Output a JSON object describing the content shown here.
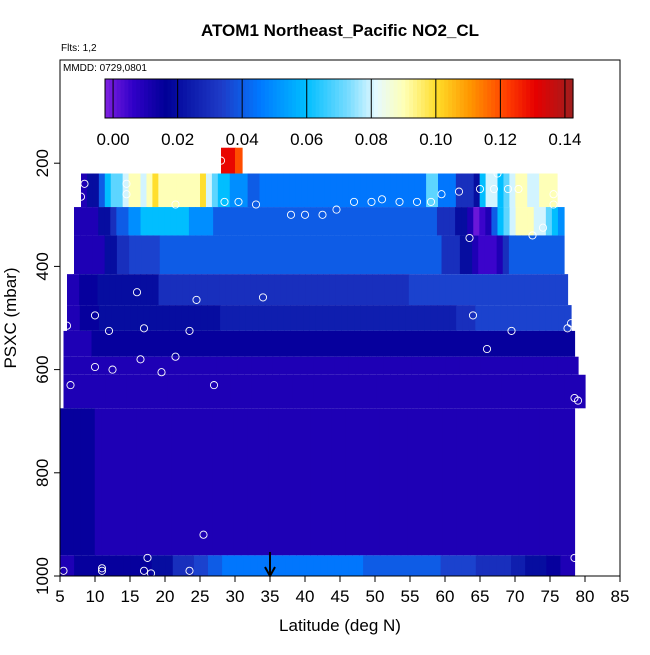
{
  "chart_data": {
    "type": "heatmap",
    "title": "ATOM1 Northeast_Pacific NO2_CL",
    "annotations": [
      "Flts: 1,2",
      "MMDD: 0729,0801"
    ],
    "xlabel": "Latitude (deg N)",
    "ylabel": "PSXC (mbar)",
    "xlim": [
      5,
      85
    ],
    "ylim": [
      1000,
      0
    ],
    "x_ticks": [
      5,
      10,
      15,
      20,
      25,
      30,
      35,
      40,
      45,
      50,
      55,
      60,
      65,
      70,
      75,
      80,
      85
    ],
    "y_ticks": [
      200,
      400,
      600,
      800,
      1000
    ],
    "colorbar": {
      "min": -0.0025,
      "max": 0.1425,
      "ticks": [
        0.0,
        0.02,
        0.04,
        0.06,
        0.08,
        0.1,
        0.12,
        0.14
      ],
      "tick_labels": [
        "0.00",
        "0.02",
        "0.04",
        "0.06",
        "0.08",
        "0.10",
        "0.12",
        "0.14"
      ]
    },
    "marker_latitude": 35,
    "bands": [
      {
        "p_top": 170,
        "p_bot": 220,
        "x_start": 28,
        "x_end": 31,
        "values": [
          0.13,
          0.13,
          0.12
        ]
      },
      {
        "p_top": 220,
        "p_bot": 285,
        "x_start": 8,
        "x_end": 76,
        "values": [
          0.01,
          0.02,
          0.02,
          0.04,
          0.06,
          0.07,
          0.07,
          0.08,
          0.09,
          0.09,
          0.08,
          0.09,
          0.1,
          0.09,
          0.09,
          0.09,
          0.09,
          0.09,
          0.09,
          0.09,
          0.1,
          0.08,
          0.07,
          0.06,
          0.06,
          0.05,
          0.05,
          0.05,
          0.04,
          0.04,
          0.045,
          0.045,
          0.045,
          0.045,
          0.045,
          0.045,
          0.045,
          0.045,
          0.045,
          0.045,
          0.045,
          0.045,
          0.045,
          0.045,
          0.045,
          0.045,
          0.045,
          0.045,
          0.045,
          0.045,
          0.045,
          0.045,
          0.045,
          0.045,
          0.045,
          0.045,
          0.045,
          0.045,
          0.07,
          0.07,
          0.045,
          0.045,
          0.045,
          0.03,
          0.03,
          0.03,
          0.02,
          0.06,
          0.08,
          0.08,
          0.06,
          0.07,
          0.08,
          0.09,
          0.09,
          0.08,
          0.08,
          0.09,
          0.09,
          0.09
        ]
      },
      {
        "p_top": 285,
        "p_bot": 340,
        "x_start": 7,
        "x_end": 77,
        "values": [
          0.01,
          0.01,
          0.01,
          0.01,
          0.02,
          0.02,
          0.03,
          0.04,
          0.04,
          0.05,
          0.05,
          0.06,
          0.06,
          0.06,
          0.06,
          0.06,
          0.06,
          0.06,
          0.06,
          0.05,
          0.05,
          0.05,
          0.05,
          0.04,
          0.04,
          0.04,
          0.04,
          0.04,
          0.04,
          0.04,
          0.04,
          0.04,
          0.04,
          0.04,
          0.04,
          0.04,
          0.04,
          0.04,
          0.04,
          0.04,
          0.04,
          0.04,
          0.04,
          0.04,
          0.04,
          0.04,
          0.04,
          0.04,
          0.04,
          0.04,
          0.04,
          0.04,
          0.04,
          0.04,
          0.04,
          0.04,
          0.04,
          0.04,
          0.04,
          0.04,
          0.03,
          0.03,
          0.03,
          0.02,
          0.02,
          0.01,
          0.0,
          0.005,
          0.01,
          0.04,
          0.06,
          0.07,
          0.08,
          0.09,
          0.09,
          0.09,
          0.08,
          0.08,
          0.07,
          0.06,
          0.05
        ]
      },
      {
        "p_top": 340,
        "p_bot": 415,
        "x_start": 7,
        "x_end": 77,
        "values": [
          0.01,
          0.01,
          0.01,
          0.01,
          0.01,
          0.02,
          0.02,
          0.03,
          0.03,
          0.035,
          0.035,
          0.035,
          0.035,
          0.035,
          0.04,
          0.04,
          0.04,
          0.04,
          0.04,
          0.04,
          0.04,
          0.04,
          0.04,
          0.04,
          0.04,
          0.04,
          0.04,
          0.04,
          0.04,
          0.04,
          0.04,
          0.04,
          0.04,
          0.04,
          0.04,
          0.04,
          0.04,
          0.04,
          0.04,
          0.04,
          0.04,
          0.04,
          0.04,
          0.04,
          0.04,
          0.04,
          0.04,
          0.04,
          0.04,
          0.04,
          0.04,
          0.04,
          0.04,
          0.04,
          0.04,
          0.04,
          0.04,
          0.04,
          0.04,
          0.04,
          0.03,
          0.03,
          0.03,
          0.02,
          0.02,
          0.01,
          0.005,
          0.005,
          0.005,
          0.01,
          0.03,
          0.04,
          0.04,
          0.04,
          0.04,
          0.04,
          0.04,
          0.04,
          0.04,
          0.04
        ]
      },
      {
        "p_top": 415,
        "p_bot": 475,
        "x_start": 6,
        "x_end": 77.5,
        "values": [
          0.01,
          0.01,
          0.015,
          0.015,
          0.015,
          0.02,
          0.02,
          0.02,
          0.02,
          0.02,
          0.02,
          0.02,
          0.02,
          0.02,
          0.02,
          0.03,
          0.03,
          0.03,
          0.03,
          0.03,
          0.03,
          0.03,
          0.03,
          0.03,
          0.03,
          0.03,
          0.03,
          0.03,
          0.03,
          0.03,
          0.03,
          0.03,
          0.03,
          0.03,
          0.03,
          0.03,
          0.03,
          0.03,
          0.03,
          0.03,
          0.03,
          0.03,
          0.03,
          0.03,
          0.03,
          0.03,
          0.03,
          0.03,
          0.03,
          0.03,
          0.03,
          0.03,
          0.03,
          0.03,
          0.03,
          0.03,
          0.035,
          0.035,
          0.035,
          0.035,
          0.035,
          0.035,
          0.035,
          0.035,
          0.035,
          0.035,
          0.035,
          0.035,
          0.035,
          0.035,
          0.035,
          0.035,
          0.035,
          0.035,
          0.035,
          0.035,
          0.035,
          0.035,
          0.035,
          0.035,
          0.035,
          0.035
        ]
      },
      {
        "p_top": 475,
        "p_bot": 525,
        "x_start": 6,
        "x_end": 78,
        "values": [
          0.01,
          0.01,
          0.015,
          0.015,
          0.015,
          0.02,
          0.02,
          0.02,
          0.02,
          0.02,
          0.02,
          0.02,
          0.02,
          0.02,
          0.02,
          0.02,
          0.02,
          0.02,
          0.02,
          0.02,
          0.02,
          0.02,
          0.02,
          0.02,
          0.025,
          0.025,
          0.025,
          0.025,
          0.025,
          0.025,
          0.025,
          0.025,
          0.025,
          0.025,
          0.025,
          0.025,
          0.025,
          0.025,
          0.025,
          0.025,
          0.025,
          0.025,
          0.025,
          0.025,
          0.025,
          0.025,
          0.025,
          0.025,
          0.025,
          0.025,
          0.025,
          0.025,
          0.025,
          0.025,
          0.025,
          0.025,
          0.025,
          0.025,
          0.025,
          0.025,
          0.025,
          0.03,
          0.03,
          0.03,
          0.035,
          0.035,
          0.035,
          0.035,
          0.035,
          0.035,
          0.035,
          0.035,
          0.035,
          0.035,
          0.035,
          0.035,
          0.035,
          0.035,
          0.035
        ]
      },
      {
        "p_top": 525,
        "p_bot": 575,
        "x_start": 5.5,
        "x_end": 78.5,
        "values": [
          0.01,
          0.01,
          0.01,
          0.01,
          0.015,
          0.015,
          0.015,
          0.015,
          0.015,
          0.015,
          0.015,
          0.015,
          0.015,
          0.015,
          0.015,
          0.015,
          0.015,
          0.015,
          0.015,
          0.015,
          0.015,
          0.015,
          0.015,
          0.015,
          0.015,
          0.015,
          0.015,
          0.015,
          0.015,
          0.015,
          0.015,
          0.015,
          0.015,
          0.015,
          0.015,
          0.015,
          0.015,
          0.015,
          0.015,
          0.015,
          0.015,
          0.015,
          0.015,
          0.015,
          0.015,
          0.015,
          0.015,
          0.015,
          0.015,
          0.015,
          0.015,
          0.015,
          0.015,
          0.015,
          0.015,
          0.015,
          0.015,
          0.015,
          0.015,
          0.015,
          0.015,
          0.015,
          0.015,
          0.015,
          0.015,
          0.015,
          0.015,
          0.015,
          0.015,
          0.015,
          0.015,
          0.015,
          0.015
        ]
      },
      {
        "p_top": 575,
        "p_bot": 610,
        "x_start": 5.5,
        "x_end": 79,
        "values": [
          0.01,
          0.01,
          0.01,
          0.01,
          0.01,
          0.01,
          0.01,
          0.01,
          0.01,
          0.01,
          0.01,
          0.01,
          0.01,
          0.01,
          0.01,
          0.01,
          0.01,
          0.01,
          0.01,
          0.01,
          0.01,
          0.01,
          0.01,
          0.01,
          0.01,
          0.01,
          0.01,
          0.01,
          0.01,
          0.01,
          0.01,
          0.01,
          0.01,
          0.01,
          0.01,
          0.01,
          0.01,
          0.01,
          0.01,
          0.01,
          0.01,
          0.01,
          0.01,
          0.01,
          0.01,
          0.01,
          0.01,
          0.01,
          0.01,
          0.01,
          0.01,
          0.01,
          0.01,
          0.01,
          0.01,
          0.01,
          0.01,
          0.01,
          0.01,
          0.01,
          0.01,
          0.01,
          0.01,
          0.01,
          0.01,
          0.01,
          0.01,
          0.01,
          0.01,
          0.01,
          0.01,
          0.01,
          0.01,
          0.01
        ]
      },
      {
        "p_top": 610,
        "p_bot": 675,
        "x_start": 5.5,
        "x_end": 80,
        "values": [
          0.01,
          0.01,
          0.01,
          0.01,
          0.01,
          0.01,
          0.01,
          0.01,
          0.01,
          0.01,
          0.01,
          0.01,
          0.01,
          0.01,
          0.01,
          0.01,
          0.01,
          0.01,
          0.01,
          0.01,
          0.01,
          0.01,
          0.01,
          0.01,
          0.01,
          0.01,
          0.01,
          0.01,
          0.01,
          0.01,
          0.01,
          0.01,
          0.01,
          0.01,
          0.01,
          0.01,
          0.01,
          0.01,
          0.01,
          0.01,
          0.01,
          0.01,
          0.01,
          0.01,
          0.01,
          0.01,
          0.01,
          0.01,
          0.01,
          0.01,
          0.01,
          0.01,
          0.01,
          0.01,
          0.01,
          0.01,
          0.01,
          0.01,
          0.01,
          0.01,
          0.01,
          0.01,
          0.01,
          0.01,
          0.01,
          0.01,
          0.01,
          0.01,
          0.01,
          0.01,
          0.01,
          0.01,
          0.01,
          0.01,
          0.01
        ]
      },
      {
        "p_top": 675,
        "p_bot": 960,
        "x_start": 5,
        "x_end": 78.5,
        "values": [
          0.015,
          0.015,
          0.015,
          0.015,
          0.015,
          0.01,
          0.01,
          0.01,
          0.01,
          0.01,
          0.01,
          0.01,
          0.01,
          0.01,
          0.01,
          0.01,
          0.01,
          0.01,
          0.01,
          0.01,
          0.01,
          0.01,
          0.01,
          0.01,
          0.01,
          0.01,
          0.01,
          0.01,
          0.01,
          0.01,
          0.01,
          0.01,
          0.01,
          0.01,
          0.01,
          0.01,
          0.01,
          0.01,
          0.01,
          0.01,
          0.01,
          0.01,
          0.01,
          0.01,
          0.01,
          0.01,
          0.01,
          0.01,
          0.01,
          0.01,
          0.01,
          0.01,
          0.01,
          0.01,
          0.01,
          0.01,
          0.01,
          0.01,
          0.01,
          0.01,
          0.01,
          0.01,
          0.01,
          0.01,
          0.01,
          0.01,
          0.01,
          0.01,
          0.01,
          0.01,
          0.01,
          0.01,
          0.01,
          0.01
        ]
      },
      {
        "p_top": 960,
        "p_bot": 1000,
        "x_start": 5,
        "x_end": 78.5,
        "values": [
          0.01,
          0.01,
          0.015,
          0.015,
          0.015,
          0.015,
          0.015,
          0.015,
          0.015,
          0.015,
          0.015,
          0.015,
          0.015,
          0.02,
          0.02,
          0.02,
          0.03,
          0.03,
          0.03,
          0.035,
          0.035,
          0.04,
          0.04,
          0.045,
          0.045,
          0.045,
          0.045,
          0.045,
          0.045,
          0.045,
          0.045,
          0.045,
          0.045,
          0.045,
          0.045,
          0.045,
          0.045,
          0.045,
          0.045,
          0.045,
          0.045,
          0.045,
          0.045,
          0.04,
          0.04,
          0.04,
          0.04,
          0.04,
          0.04,
          0.04,
          0.04,
          0.04,
          0.04,
          0.04,
          0.035,
          0.035,
          0.035,
          0.035,
          0.035,
          0.03,
          0.03,
          0.03,
          0.03,
          0.03,
          0.025,
          0.025,
          0.02,
          0.02,
          0.02,
          0.015,
          0.015,
          0.01,
          0.01
        ]
      }
    ],
    "points": [
      {
        "lat": 8,
        "p": 265
      },
      {
        "lat": 8.5,
        "p": 240
      },
      {
        "lat": 14.5,
        "p": 240
      },
      {
        "lat": 14.5,
        "p": 260
      },
      {
        "lat": 21.5,
        "p": 280
      },
      {
        "lat": 28,
        "p": 195
      },
      {
        "lat": 28.5,
        "p": 275
      },
      {
        "lat": 30.5,
        "p": 275
      },
      {
        "lat": 33,
        "p": 280
      },
      {
        "lat": 38,
        "p": 300
      },
      {
        "lat": 40,
        "p": 300
      },
      {
        "lat": 42.5,
        "p": 300
      },
      {
        "lat": 44.5,
        "p": 290
      },
      {
        "lat": 47,
        "p": 275
      },
      {
        "lat": 49.5,
        "p": 275
      },
      {
        "lat": 51,
        "p": 270
      },
      {
        "lat": 53.5,
        "p": 275
      },
      {
        "lat": 56,
        "p": 275
      },
      {
        "lat": 58,
        "p": 275
      },
      {
        "lat": 59.5,
        "p": 260
      },
      {
        "lat": 62,
        "p": 255
      },
      {
        "lat": 63.5,
        "p": 345
      },
      {
        "lat": 65,
        "p": 250
      },
      {
        "lat": 67,
        "p": 250
      },
      {
        "lat": 67.5,
        "p": 220
      },
      {
        "lat": 69,
        "p": 250
      },
      {
        "lat": 70.5,
        "p": 250
      },
      {
        "lat": 72.5,
        "p": 340
      },
      {
        "lat": 74,
        "p": 325
      },
      {
        "lat": 75.5,
        "p": 260
      },
      {
        "lat": 75.5,
        "p": 280
      },
      {
        "lat": 16,
        "p": 450
      },
      {
        "lat": 24.5,
        "p": 465
      },
      {
        "lat": 34,
        "p": 460
      },
      {
        "lat": 10,
        "p": 495
      },
      {
        "lat": 64,
        "p": 495
      },
      {
        "lat": 6,
        "p": 515
      },
      {
        "lat": 12,
        "p": 525
      },
      {
        "lat": 17,
        "p": 520
      },
      {
        "lat": 23.5,
        "p": 525
      },
      {
        "lat": 69.5,
        "p": 525
      },
      {
        "lat": 77.5,
        "p": 520
      },
      {
        "lat": 78,
        "p": 510
      },
      {
        "lat": 21.5,
        "p": 575
      },
      {
        "lat": 16.5,
        "p": 580
      },
      {
        "lat": 66,
        "p": 560
      },
      {
        "lat": 10,
        "p": 595
      },
      {
        "lat": 12.5,
        "p": 600
      },
      {
        "lat": 19.5,
        "p": 605
      },
      {
        "lat": 6.5,
        "p": 630
      },
      {
        "lat": 27,
        "p": 630
      },
      {
        "lat": 78.5,
        "p": 655
      },
      {
        "lat": 79,
        "p": 660
      },
      {
        "lat": 25.5,
        "p": 920
      },
      {
        "lat": 17.5,
        "p": 965
      },
      {
        "lat": 78.5,
        "p": 965
      },
      {
        "lat": 5.5,
        "p": 990
      },
      {
        "lat": 11,
        "p": 985
      },
      {
        "lat": 11,
        "p": 990
      },
      {
        "lat": 17,
        "p": 990
      },
      {
        "lat": 18,
        "p": 995
      },
      {
        "lat": 23.5,
        "p": 990
      }
    ]
  }
}
